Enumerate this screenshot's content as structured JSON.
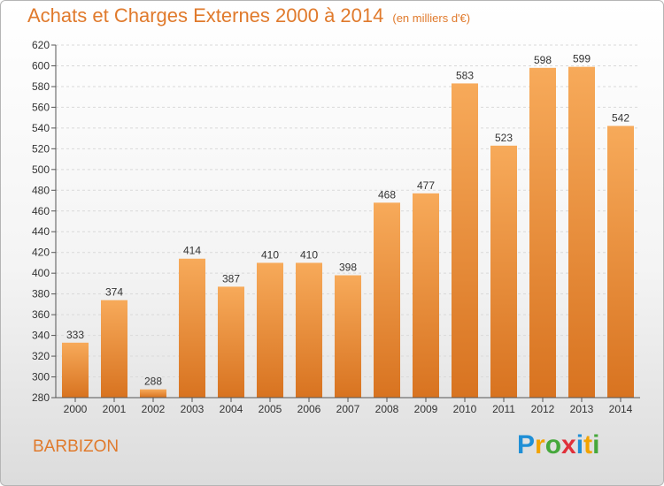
{
  "header": {
    "title": "Achats et Charges Externes 2000 à 2014",
    "unit": "(en milliers d'€)"
  },
  "footer": {
    "city": "BARBIZON",
    "logo_letters": [
      "P",
      "r",
      "o",
      "x",
      "i",
      "t",
      "i"
    ],
    "logo_colors": [
      "#1f8fd6",
      "#f2a300",
      "#46a83c",
      "#e0303a",
      "#1f8fd6",
      "#f2a300",
      "#46a83c"
    ]
  },
  "colors": {
    "bar_top": "#f7aa5a",
    "bar_bottom": "#d87320",
    "title": "#e07a2c"
  },
  "chart_data": {
    "type": "bar",
    "categories": [
      "2000",
      "2001",
      "2002",
      "2003",
      "2004",
      "2005",
      "2006",
      "2007",
      "2008",
      "2009",
      "2010",
      "2011",
      "2012",
      "2013",
      "2014"
    ],
    "values": [
      333,
      374,
      288,
      414,
      387,
      410,
      410,
      398,
      468,
      477,
      583,
      523,
      598,
      599,
      542
    ],
    "ylim": [
      280,
      620
    ],
    "yticks": [
      280,
      300,
      320,
      340,
      360,
      380,
      400,
      420,
      440,
      460,
      480,
      500,
      520,
      540,
      560,
      580,
      600,
      620
    ],
    "grid": true
  }
}
